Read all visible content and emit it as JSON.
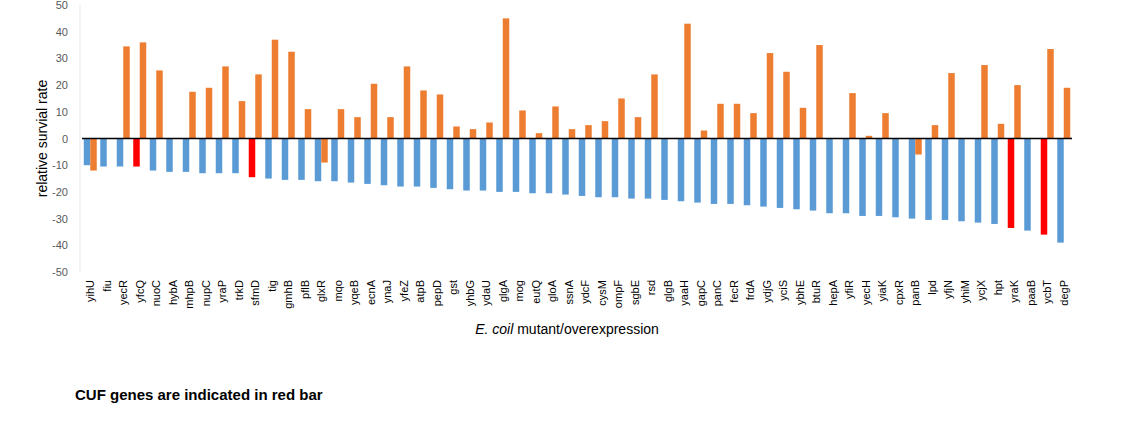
{
  "chart_data": {
    "type": "bar",
    "x_label": "E. coil mutant/overexpression",
    "y_label": "relative survial rate",
    "annotation": "CUF genes are indicated in red bar",
    "categories": [
      "yihU",
      "fiu",
      "yecR",
      "yfcQ",
      "nuoC",
      "hybA",
      "mhpB",
      "nupC",
      "yraP",
      "trkD",
      "sfmD",
      "tig",
      "gmhB",
      "pflB",
      "glxR",
      "mqo",
      "yqeB",
      "ecnA",
      "ynaJ",
      "yfeZ",
      "atpB",
      "pepD",
      "gst",
      "yhbG",
      "ydaU",
      "glgA",
      "mog",
      "eutQ",
      "gloA",
      "ssnA",
      "ydcF",
      "cysM",
      "ompF",
      "sgbE",
      "rsd",
      "glgB",
      "yaaH",
      "gapC",
      "panC",
      "fecR",
      "frdA",
      "ydjG",
      "yciS",
      "ybhE",
      "btuR",
      "hepA",
      "yfiR",
      "yecH",
      "yiaK",
      "cpxR",
      "panB",
      "lpd",
      "yfjN",
      "yhiM",
      "ycjX",
      "hpt",
      "yraK",
      "paaB",
      "ycbT",
      "degP"
    ],
    "series": [
      {
        "color": "#5b9bd5",
        "colors": [
          "#5b9bd5",
          "#5b9bd5",
          "#5b9bd5",
          "#ff0000",
          "#5b9bd5",
          "#5b9bd5",
          "#5b9bd5",
          "#5b9bd5",
          "#5b9bd5",
          "#5b9bd5",
          "#ff0000",
          "#5b9bd5",
          "#5b9bd5",
          "#5b9bd5",
          "#5b9bd5",
          "#5b9bd5",
          "#5b9bd5",
          "#5b9bd5",
          "#5b9bd5",
          "#5b9bd5",
          "#5b9bd5",
          "#5b9bd5",
          "#5b9bd5",
          "#5b9bd5",
          "#5b9bd5",
          "#5b9bd5",
          "#5b9bd5",
          "#5b9bd5",
          "#5b9bd5",
          "#5b9bd5",
          "#5b9bd5",
          "#5b9bd5",
          "#5b9bd5",
          "#5b9bd5",
          "#5b9bd5",
          "#5b9bd5",
          "#5b9bd5",
          "#5b9bd5",
          "#5b9bd5",
          "#5b9bd5",
          "#5b9bd5",
          "#5b9bd5",
          "#5b9bd5",
          "#5b9bd5",
          "#5b9bd5",
          "#5b9bd5",
          "#5b9bd5",
          "#5b9bd5",
          "#5b9bd5",
          "#5b9bd5",
          "#5b9bd5",
          "#5b9bd5",
          "#5b9bd5",
          "#5b9bd5",
          "#5b9bd5",
          "#5b9bd5",
          "#ff0000",
          "#5b9bd5",
          "#ff0000",
          "#5b9bd5"
        ],
        "values": [
          -10,
          -10.5,
          -10.5,
          -10.5,
          -12,
          -12.5,
          -12.5,
          -13,
          -13,
          -13,
          -14.5,
          -15,
          -15.5,
          -15.5,
          -16,
          -16,
          -16.5,
          -17,
          -17.5,
          -18,
          -18,
          -18.5,
          -19,
          -19.5,
          -19.5,
          -20,
          -20,
          -20.5,
          -20.5,
          -21,
          -21.5,
          -22,
          -22,
          -22.5,
          -22.5,
          -23,
          -23.5,
          -24,
          -24.5,
          -24.5,
          -25,
          -25.5,
          -26,
          -26.5,
          -27,
          -28,
          -28,
          -29,
          -29,
          -29.5,
          -30,
          -30.5,
          -30.5,
          -31,
          -31.5,
          -32,
          -33.5,
          -34.5,
          -36,
          -39
        ]
      },
      {
        "color": "#ed7d31",
        "values": [
          -12,
          null,
          34.5,
          36,
          25.5,
          null,
          17.5,
          19,
          27,
          14,
          24,
          37,
          32.5,
          11,
          -9,
          11,
          8,
          20.5,
          8,
          27,
          18,
          16.5,
          4.5,
          3.5,
          6,
          45,
          10.5,
          2,
          12,
          3.5,
          5,
          6.5,
          15,
          8,
          24,
          null,
          43,
          3,
          13,
          13,
          9.5,
          32,
          25,
          11.5,
          35,
          null,
          17,
          1,
          9.5,
          null,
          -6,
          5,
          24.5,
          null,
          27.5,
          5.5,
          20,
          null,
          33.5,
          19
        ]
      }
    ],
    "ylim": [
      -50,
      50
    ],
    "yticks": [
      -50,
      -40,
      -30,
      -20,
      -10,
      0,
      10,
      20,
      30,
      40,
      50
    ],
    "grid": false
  }
}
